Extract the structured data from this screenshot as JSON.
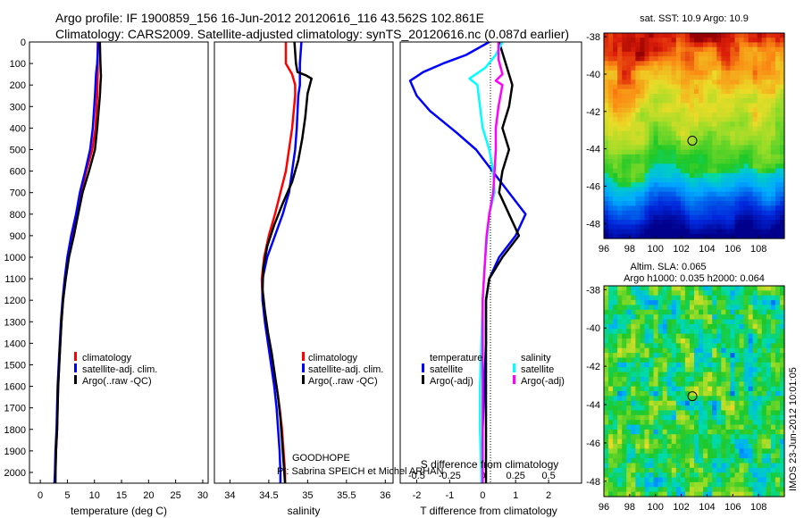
{
  "header": {
    "line1": "Argo profile: IF 1900859_156 16-Jun-2012 20120616_116 43.562S 102.861E",
    "line2": "Climatology: CARS2009. Satellite-adjusted climatology: synTS_20120616.nc (0.087d earlier)"
  },
  "colors": {
    "climatology": "#ff0000",
    "satellite": "#0000ff",
    "argo": "#000000",
    "sal_satellite": "#00ffff",
    "sal_argo": "#ff00ff"
  },
  "annotations": {
    "project": "GOODHOPE",
    "pi": "PI: Sabrina SPEICH et Michel ARHAN",
    "stamp": "IMOS 23-Jun-2012 10:01:05"
  },
  "chart_data": [
    {
      "type": "line",
      "id": "temperature",
      "xlabel": "temperature (deg C)",
      "ylabel": "",
      "xlim": [
        -2,
        31
      ],
      "ylim": [
        2050,
        0
      ],
      "xticks": [
        0,
        5,
        10,
        15,
        20,
        25,
        30
      ],
      "yticks": [
        0,
        100,
        200,
        300,
        400,
        500,
        600,
        700,
        800,
        900,
        1000,
        1100,
        1200,
        1300,
        1400,
        1500,
        1600,
        1700,
        1800,
        1900,
        2000
      ],
      "legend": [
        "climatology",
        "satellite-adj. clim.",
        "Argo(..raw -QC)"
      ],
      "series": [
        {
          "name": "climatology",
          "color": "#ff0000",
          "points": [
            [
              10.6,
              0
            ],
            [
              10.6,
              100
            ],
            [
              10.6,
              150
            ],
            [
              10.5,
              250
            ],
            [
              10.2,
              400
            ],
            [
              9.6,
              500
            ],
            [
              8.5,
              600
            ],
            [
              7.5,
              700
            ],
            [
              6.8,
              800
            ],
            [
              6.0,
              900
            ],
            [
              5.2,
              1000
            ],
            [
              4.6,
              1100
            ],
            [
              4.2,
              1200
            ],
            [
              3.9,
              1300
            ],
            [
              3.7,
              1400
            ],
            [
              3.5,
              1500
            ],
            [
              3.3,
              1600
            ],
            [
              3.2,
              1700
            ],
            [
              3.1,
              1800
            ],
            [
              2.9,
              1900
            ],
            [
              2.8,
              2000
            ],
            [
              2.7,
              2050
            ]
          ]
        },
        {
          "name": "satellite-adj. clim.",
          "color": "#0000ff",
          "points": [
            [
              10.7,
              0
            ],
            [
              10.5,
              100
            ],
            [
              10.3,
              150
            ],
            [
              10.1,
              250
            ],
            [
              9.7,
              400
            ],
            [
              9.2,
              500
            ],
            [
              8.3,
              600
            ],
            [
              7.3,
              700
            ],
            [
              6.6,
              800
            ],
            [
              5.7,
              900
            ],
            [
              5.0,
              1000
            ],
            [
              4.5,
              1100
            ],
            [
              4.1,
              1200
            ],
            [
              3.8,
              1300
            ],
            [
              3.6,
              1400
            ],
            [
              3.4,
              1500
            ],
            [
              3.2,
              1600
            ],
            [
              3.1,
              1700
            ],
            [
              3.0,
              1800
            ],
            [
              2.8,
              1900
            ],
            [
              2.7,
              2000
            ],
            [
              2.6,
              2050
            ]
          ]
        },
        {
          "name": "Argo(..raw -QC)",
          "color": "#000000",
          "points": [
            [
              11.0,
              0
            ],
            [
              11.1,
              100
            ],
            [
              11.2,
              160
            ],
            [
              11.1,
              200
            ],
            [
              11.0,
              250
            ],
            [
              10.5,
              400
            ],
            [
              10.1,
              500
            ],
            [
              9.0,
              600
            ],
            [
              7.8,
              700
            ],
            [
              7.0,
              800
            ],
            [
              6.2,
              900
            ],
            [
              5.3,
              1000
            ],
            [
              4.7,
              1100
            ],
            [
              4.2,
              1200
            ],
            [
              3.9,
              1300
            ],
            [
              3.7,
              1400
            ],
            [
              3.5,
              1500
            ],
            [
              3.3,
              1600
            ],
            [
              3.2,
              1700
            ],
            [
              3.1,
              1800
            ],
            [
              2.9,
              1900
            ],
            [
              2.8,
              2000
            ],
            [
              2.8,
              2050
            ]
          ]
        }
      ]
    },
    {
      "type": "line",
      "id": "salinity",
      "xlabel": "salinity",
      "ylabel": "",
      "xlim": [
        33.8,
        36.1
      ],
      "ylim": [
        2050,
        0
      ],
      "xticks": [
        34,
        34.5,
        35,
        35.5,
        36
      ],
      "legend": [
        "climatology",
        "satellite-adj. clim.",
        "Argo(..raw -QC)"
      ],
      "series": [
        {
          "name": "climatology",
          "color": "#ff0000",
          "points": [
            [
              34.72,
              0
            ],
            [
              34.72,
              100
            ],
            [
              34.8,
              150
            ],
            [
              34.84,
              200
            ],
            [
              34.84,
              250
            ],
            [
              34.8,
              400
            ],
            [
              34.76,
              500
            ],
            [
              34.72,
              600
            ],
            [
              34.65,
              700
            ],
            [
              34.58,
              800
            ],
            [
              34.5,
              900
            ],
            [
              34.44,
              1000
            ],
            [
              34.41,
              1100
            ],
            [
              34.42,
              1200
            ],
            [
              34.46,
              1300
            ],
            [
              34.5,
              1400
            ],
            [
              34.55,
              1500
            ],
            [
              34.6,
              1600
            ],
            [
              34.64,
              1700
            ],
            [
              34.67,
              1800
            ],
            [
              34.69,
              1900
            ],
            [
              34.71,
              2000
            ],
            [
              34.71,
              2050
            ]
          ]
        },
        {
          "name": "satellite-adj. clim.",
          "color": "#0000ff",
          "points": [
            [
              34.92,
              0
            ],
            [
              34.9,
              100
            ],
            [
              34.9,
              200
            ],
            [
              34.88,
              250
            ],
            [
              34.86,
              400
            ],
            [
              34.84,
              500
            ],
            [
              34.8,
              600
            ],
            [
              34.76,
              700
            ],
            [
              34.68,
              800
            ],
            [
              34.58,
              900
            ],
            [
              34.48,
              1000
            ],
            [
              34.42,
              1100
            ],
            [
              34.42,
              1200
            ],
            [
              34.45,
              1300
            ],
            [
              34.49,
              1400
            ],
            [
              34.53,
              1500
            ],
            [
              34.57,
              1600
            ],
            [
              34.6,
              1700
            ],
            [
              34.62,
              1800
            ],
            [
              34.64,
              1900
            ],
            [
              34.65,
              2000
            ],
            [
              34.65,
              2050
            ]
          ]
        },
        {
          "name": "Argo(..raw -QC)",
          "color": "#000000",
          "points": [
            [
              34.83,
              0
            ],
            [
              34.85,
              100
            ],
            [
              34.87,
              140
            ],
            [
              34.98,
              155
            ],
            [
              35.05,
              170
            ],
            [
              35.0,
              240
            ],
            [
              34.97,
              350
            ],
            [
              34.93,
              450
            ],
            [
              34.88,
              550
            ],
            [
              34.8,
              650
            ],
            [
              34.68,
              750
            ],
            [
              34.57,
              850
            ],
            [
              34.48,
              950
            ],
            [
              34.43,
              1050
            ],
            [
              34.42,
              1150
            ],
            [
              34.45,
              1250
            ],
            [
              34.49,
              1350
            ],
            [
              34.54,
              1450
            ],
            [
              34.58,
              1550
            ],
            [
              34.62,
              1650
            ],
            [
              34.65,
              1750
            ],
            [
              34.67,
              1850
            ],
            [
              34.69,
              1950
            ],
            [
              34.71,
              2050
            ]
          ]
        }
      ]
    },
    {
      "type": "line",
      "id": "difference",
      "xlabel": "T difference from climatology",
      "x2label": "S difference from climatology",
      "xlim": [
        -2.5,
        3.0
      ],
      "ylim": [
        2050,
        0
      ],
      "xticks": [
        -2,
        -1,
        0,
        1,
        2
      ],
      "x2ticks": [
        "-0.5",
        "-0.25",
        "0",
        "0.25",
        "0.5"
      ],
      "legend_headings": [
        "temperature",
        "salinity"
      ],
      "legend": [
        "satellite",
        "Argo(-adj)",
        "satellite",
        "Argo(-adj)"
      ],
      "series": [
        {
          "name": "satellite",
          "quantity": "temperature",
          "color": "#0000ff",
          "points": [
            [
              0.2,
              0
            ],
            [
              -0.5,
              60
            ],
            [
              -1.2,
              100
            ],
            [
              -1.8,
              140
            ],
            [
              -2.2,
              180
            ],
            [
              -2.0,
              250
            ],
            [
              -1.6,
              320
            ],
            [
              -0.8,
              420
            ],
            [
              -0.2,
              500
            ],
            [
              0.3,
              600
            ],
            [
              0.8,
              700
            ],
            [
              1.3,
              800
            ],
            [
              1.0,
              900
            ],
            [
              0.5,
              1000
            ],
            [
              0.2,
              1100
            ],
            [
              0.1,
              1200
            ],
            [
              0.1,
              1400
            ],
            [
              0.05,
              1600
            ],
            [
              0.0,
              1800
            ],
            [
              0.0,
              2000
            ],
            [
              0.0,
              2050
            ]
          ]
        },
        {
          "name": "Argo(-adj)",
          "quantity": "temperature",
          "color": "#000000",
          "points": [
            [
              0.5,
              0
            ],
            [
              0.7,
              100
            ],
            [
              0.9,
              200
            ],
            [
              0.8,
              300
            ],
            [
              0.6,
              400
            ],
            [
              0.8,
              500
            ],
            [
              0.6,
              600
            ],
            [
              0.5,
              700
            ],
            [
              0.8,
              800
            ],
            [
              1.1,
              900
            ],
            [
              0.6,
              1000
            ],
            [
              0.2,
              1100
            ],
            [
              0.1,
              1200
            ],
            [
              0.1,
              1400
            ],
            [
              0.1,
              1600
            ],
            [
              0.1,
              1800
            ],
            [
              0.1,
              2000
            ],
            [
              0.1,
              2050
            ]
          ]
        },
        {
          "name": "satellite",
          "quantity": "salinity",
          "color": "#00ffff",
          "points": [
            [
              0.15,
              0
            ],
            [
              0.1,
              60
            ],
            [
              0.02,
              120
            ],
            [
              -0.1,
              170
            ],
            [
              -0.04,
              200
            ],
            [
              -0.02,
              300
            ],
            [
              0.0,
              400
            ],
            [
              0.05,
              500
            ],
            [
              0.08,
              600
            ],
            [
              0.09,
              700
            ],
            [
              0.05,
              800
            ],
            [
              0.02,
              1000
            ],
            [
              0.0,
              1200
            ],
            [
              -0.01,
              1400
            ],
            [
              -0.02,
              1600
            ],
            [
              -0.02,
              1800
            ],
            [
              -0.01,
              2000
            ],
            [
              -0.01,
              2050
            ]
          ]
        },
        {
          "name": "Argo(-adj)",
          "quantity": "salinity",
          "color": "#ff00ff",
          "points": [
            [
              0.12,
              0
            ],
            [
              0.12,
              80
            ],
            [
              0.15,
              150
            ],
            [
              0.1,
              180
            ],
            [
              0.15,
              200
            ],
            [
              0.12,
              300
            ],
            [
              0.1,
              400
            ],
            [
              0.1,
              500
            ],
            [
              0.09,
              600
            ],
            [
              0.08,
              700
            ],
            [
              0.05,
              800
            ],
            [
              0.03,
              900
            ],
            [
              0.02,
              1000
            ],
            [
              0.01,
              1100
            ],
            [
              0.0,
              1200
            ],
            [
              0.0,
              1400
            ],
            [
              0.0,
              1600
            ],
            [
              0.0,
              1800
            ],
            [
              0.0,
              2000
            ],
            [
              0.0,
              2050
            ]
          ]
        }
      ]
    },
    {
      "type": "heatmap",
      "id": "sst-map",
      "title": "sat. SST: 10.9 Argo: 10.9",
      "xlim": [
        96,
        110
      ],
      "ylim": [
        -48.8,
        -37.8
      ],
      "xticks": [
        96,
        98,
        100,
        102,
        104,
        106,
        108
      ],
      "yticks": [
        -38,
        -40,
        -42,
        -44,
        -46,
        -48
      ],
      "marker": [
        102.861,
        -43.562
      ]
    },
    {
      "type": "heatmap",
      "id": "sla-map",
      "title": "Altim. SLA: 0.065",
      "subtitle": "Argo h1000: 0.035 h2000: 0.064",
      "xlim": [
        96,
        110
      ],
      "ylim": [
        -48.8,
        -37.8
      ],
      "xticks": [
        96,
        98,
        100,
        102,
        104,
        106,
        108
      ],
      "yticks": [
        -38,
        -40,
        -42,
        -44,
        -46,
        -48
      ],
      "marker": [
        102.861,
        -43.562
      ]
    }
  ]
}
